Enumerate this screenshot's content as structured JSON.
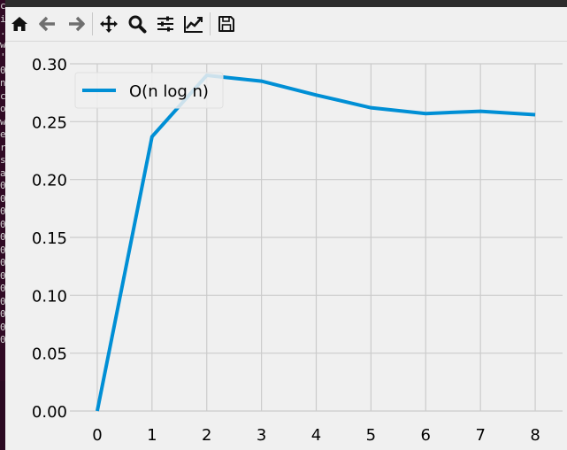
{
  "terminal": {
    "chars": [
      "c",
      "i",
      ".",
      "w",
      "'",
      "0",
      "n",
      "c",
      "o",
      "w",
      "e",
      "r",
      "s",
      "a",
      "0",
      "0",
      "0",
      "0",
      "0",
      "0",
      "0",
      "0",
      "0",
      "0",
      "0",
      "0",
      "0"
    ]
  },
  "toolbar": {
    "buttons": [
      {
        "name": "home-button",
        "icon": "home-icon"
      },
      {
        "name": "back-button",
        "icon": "arrow-left-icon"
      },
      {
        "name": "forward-button",
        "icon": "arrow-right-icon"
      },
      {
        "name": "pan-button",
        "icon": "move-icon"
      },
      {
        "name": "zoom-button",
        "icon": "magnifier-icon"
      },
      {
        "name": "configure-subplots-button",
        "icon": "sliders-icon"
      },
      {
        "name": "edit-axis-button",
        "icon": "trend-icon"
      },
      {
        "name": "save-button",
        "icon": "floppy-icon"
      }
    ]
  },
  "colors": {
    "line": "#008fd5",
    "plot_bg": "#f0f0f0",
    "grid": "#cbcbcb",
    "text": "#000000"
  },
  "chart_data": {
    "type": "line",
    "x": [
      0,
      1,
      2,
      3,
      4,
      5,
      6,
      7,
      8
    ],
    "series": [
      {
        "name": "O(n log n)",
        "values": [
          0.0,
          0.237,
          0.29,
          0.285,
          0.273,
          0.262,
          0.257,
          0.259,
          0.256
        ]
      }
    ],
    "xticks": [
      "0",
      "1",
      "2",
      "3",
      "4",
      "5",
      "6",
      "7",
      "8"
    ],
    "yticks": [
      "0.00",
      "0.05",
      "0.10",
      "0.15",
      "0.20",
      "0.25",
      "0.30"
    ],
    "xlim": [
      -0.5,
      8.5
    ],
    "ylim": [
      0,
      0.3
    ],
    "grid": true,
    "legend": "top-left",
    "title": "",
    "xlabel": "",
    "ylabel": ""
  }
}
